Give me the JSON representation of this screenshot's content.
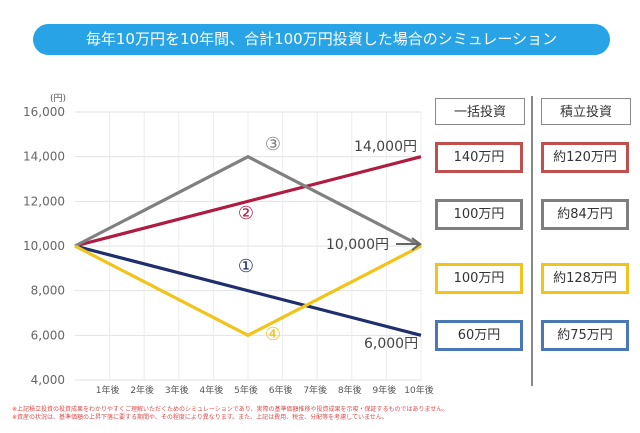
{
  "banner": {
    "title": "毎年10万円を10年間、合計100万円投資した場合のシミュレーション"
  },
  "chart_data": {
    "type": "line",
    "yunit": "(円)",
    "ylim": [
      4000,
      16000
    ],
    "yticks": [
      4000,
      6000,
      8000,
      10000,
      12000,
      14000,
      16000
    ],
    "ytick_labels": [
      "4,000",
      "6,000",
      "8,000",
      "10,000",
      "12,000",
      "14,000",
      "16,000"
    ],
    "categories": [
      "1年後",
      "2年後",
      "3年後",
      "4年後",
      "5年後",
      "6年後",
      "7年後",
      "8年後",
      "9年後",
      "10年後"
    ],
    "x_domain": [
      0,
      10
    ],
    "grid": true,
    "series": [
      {
        "marker": "①",
        "color": "#1f2f6e",
        "points": [
          [
            0,
            10000
          ],
          [
            10,
            6000
          ]
        ]
      },
      {
        "marker": "②",
        "color": "#b01c41",
        "points": [
          [
            0,
            10000
          ],
          [
            10,
            14000
          ]
        ]
      },
      {
        "marker": "③",
        "color": "#808080",
        "points": [
          [
            0,
            10000
          ],
          [
            5,
            14000
          ],
          [
            10,
            10000
          ]
        ]
      },
      {
        "marker": "④",
        "color": "#f2c318",
        "points": [
          [
            0,
            10000
          ],
          [
            5,
            6000
          ],
          [
            10,
            10000
          ]
        ]
      }
    ],
    "annotations": [
      "14,000円",
      "10,000円",
      "6,000円"
    ]
  },
  "table": {
    "headers": [
      "一括投資",
      "積立投資"
    ],
    "rows": [
      {
        "lump": "140万円",
        "reg": "約120万円",
        "color": "#c0504d"
      },
      {
        "lump": "100万円",
        "reg": "約84万円",
        "color": "#7f7f7f"
      },
      {
        "lump": "100万円",
        "reg": "約128万円",
        "color": "#f2c318"
      },
      {
        "lump": "60万円",
        "reg": "約75万円",
        "color": "#4a78b5"
      }
    ]
  },
  "notes": [
    "※上記積立投資の投資成果をわかりやすくご理解いただくためのシミュレーションであり、実際の基準価額推移や投資成果を示唆・保証するものではありません。",
    "※資産の状況は、基準価額の上昇下落に要する期間や、その程度により異なります。また、上記は費用、税金、分配等を考慮していません。"
  ]
}
